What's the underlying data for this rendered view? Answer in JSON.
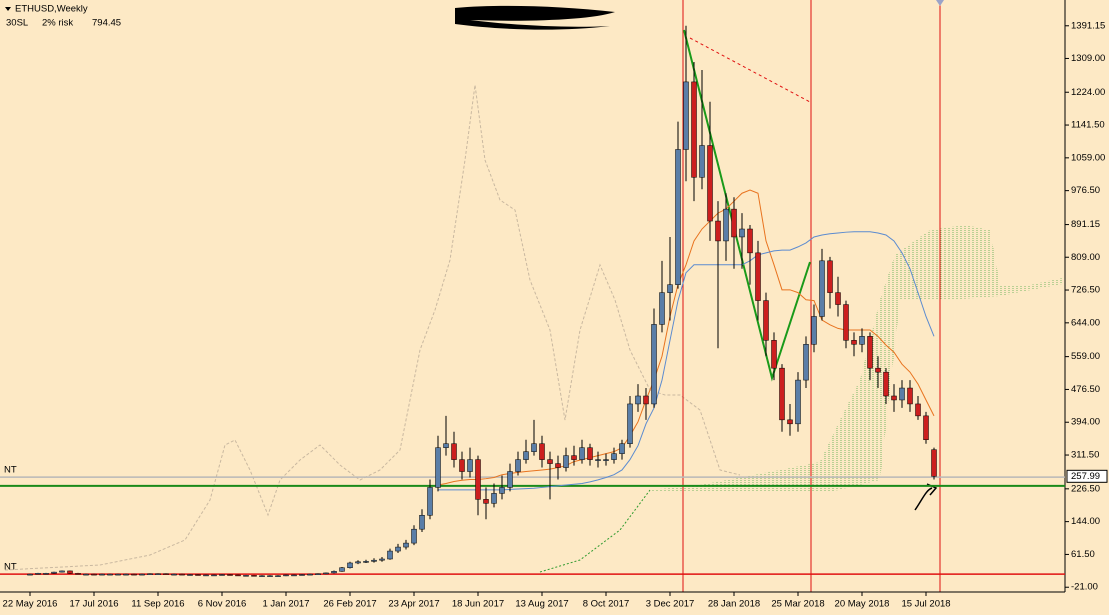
{
  "chart_data": {
    "type": "candlestick",
    "title": "ETHUSD,Weekly",
    "info": [
      "30SL",
      "2% risk",
      794.45
    ],
    "up_color": "#5a7ea8",
    "down_color": "#cc1f1f",
    "categories": [
      "22 May 2016",
      null,
      null,
      null,
      null,
      null,
      null,
      null,
      "17 Jul 2016",
      null,
      null,
      null,
      null,
      null,
      null,
      null,
      "11 Sep 2016",
      null,
      null,
      null,
      null,
      null,
      null,
      null,
      "6 Nov 2016",
      null,
      null,
      null,
      null,
      null,
      null,
      null,
      "1 Jan 2017",
      null,
      null,
      null,
      null,
      null,
      null,
      null,
      "26 Feb 2017",
      null,
      null,
      null,
      null,
      null,
      null,
      null,
      "23 Apr 2017",
      null,
      null,
      null,
      null,
      null,
      null,
      null,
      "18 Jun 2017",
      null,
      null,
      null,
      null,
      null,
      null,
      null,
      "13 Aug 2017",
      null,
      null,
      null,
      null,
      null,
      null,
      null,
      "8 Oct 2017",
      null,
      null,
      null,
      null,
      null,
      null,
      null,
      "3 Dec 2017",
      null,
      null,
      null,
      null,
      null,
      null,
      null,
      "28 Jan 2018",
      null,
      null,
      null,
      null,
      null,
      null,
      null,
      "25 Mar 2018",
      null,
      null,
      null,
      null,
      null,
      null,
      null,
      "20 May 2018",
      null,
      null,
      null,
      null,
      null,
      null,
      null,
      "15 Jul 2018",
      null
    ],
    "open": [
      11,
      12,
      14,
      14,
      17,
      20,
      14,
      12,
      12,
      11,
      12,
      12,
      12,
      12,
      11,
      12,
      13,
      13,
      12,
      12,
      11,
      11,
      10,
      10,
      10,
      11,
      10,
      9,
      9,
      8,
      8,
      8,
      8,
      10,
      10,
      11,
      12,
      13,
      15,
      19,
      28,
      40,
      43,
      44,
      47,
      50,
      70,
      80,
      90,
      125,
      160,
      230,
      330,
      340,
      300,
      270,
      300,
      200,
      190,
      215,
      230,
      270,
      300,
      320,
      340,
      300,
      290,
      280,
      310,
      300,
      330,
      300,
      300,
      300,
      315,
      340,
      440,
      460,
      440,
      640,
      720,
      740,
      1080,
      1250,
      1010,
      1090,
      900,
      850,
      930,
      860,
      880,
      820,
      700,
      600,
      530,
      400,
      390,
      500,
      590,
      660,
      800,
      720,
      690,
      600,
      590,
      610,
      530,
      520,
      460,
      450,
      480,
      440,
      410,
      325
    ],
    "high": [
      13,
      15,
      15,
      18,
      21,
      21,
      15,
      13,
      13,
      13,
      13,
      13,
      13,
      13,
      13,
      14,
      14,
      14,
      13,
      13,
      12,
      12,
      11,
      11,
      12,
      12,
      11,
      10,
      10,
      9,
      9,
      9,
      11,
      11,
      12,
      13,
      14,
      16,
      21,
      30,
      43,
      47,
      48,
      52,
      55,
      76,
      88,
      98,
      135,
      175,
      250,
      360,
      410,
      370,
      320,
      330,
      310,
      230,
      240,
      260,
      290,
      320,
      350,
      400,
      360,
      320,
      310,
      330,
      335,
      350,
      340,
      320,
      315,
      330,
      350,
      460,
      490,
      480,
      680,
      800,
      860,
      1150,
      1391.15,
      1300,
      1280,
      1200,
      950,
      970,
      960,
      920,
      890,
      850,
      720,
      620,
      540,
      440,
      520,
      610,
      690,
      830,
      810,
      760,
      700,
      620,
      630,
      620,
      560,
      530,
      490,
      500,
      500,
      460,
      420,
      330
    ],
    "low": [
      10,
      11,
      13,
      13,
      16,
      13,
      11,
      11,
      10,
      10,
      11,
      11,
      11,
      10,
      10,
      11,
      12,
      11,
      11,
      10,
      10,
      9,
      9,
      9,
      9,
      9,
      8,
      8,
      7,
      7,
      7,
      7,
      7,
      9,
      9,
      10,
      11,
      12,
      14,
      18,
      26,
      37,
      40,
      41,
      43,
      48,
      65,
      74,
      85,
      118,
      150,
      220,
      310,
      280,
      250,
      255,
      160,
      150,
      180,
      200,
      220,
      260,
      290,
      310,
      280,
      200,
      250,
      270,
      285,
      290,
      285,
      280,
      285,
      290,
      300,
      330,
      420,
      400,
      430,
      620,
      650,
      730,
      1000,
      950,
      980,
      850,
      580,
      800,
      780,
      780,
      740,
      650,
      560,
      500,
      370,
      360,
      370,
      480,
      570,
      650,
      680,
      660,
      580,
      560,
      570,
      500,
      480,
      440,
      420,
      430,
      420,
      400,
      340,
      250
    ],
    "close": [
      12,
      14,
      14,
      17,
      20,
      14,
      12,
      12,
      11,
      12,
      12,
      12,
      12,
      11,
      12,
      13,
      13,
      12,
      12,
      11,
      11,
      10,
      10,
      10,
      11,
      10,
      9,
      9,
      8,
      8,
      8,
      8,
      10,
      10,
      11,
      12,
      13,
      15,
      19,
      28,
      40,
      43,
      44,
      47,
      50,
      70,
      80,
      90,
      125,
      160,
      230,
      330,
      340,
      300,
      270,
      300,
      200,
      190,
      215,
      230,
      270,
      300,
      320,
      340,
      300,
      290,
      280,
      310,
      300,
      330,
      300,
      300,
      300,
      315,
      340,
      440,
      460,
      440,
      640,
      720,
      740,
      1080,
      1250,
      1010,
      1090,
      900,
      850,
      930,
      860,
      880,
      820,
      700,
      600,
      530,
      400,
      390,
      500,
      590,
      660,
      800,
      720,
      690,
      600,
      590,
      610,
      530,
      520,
      460,
      450,
      480,
      440,
      410,
      350,
      257.99
    ],
    "overlays": [
      {
        "color": "#e8731f",
        "values": [
          null,
          null,
          null,
          null,
          null,
          null,
          null,
          null,
          null,
          null,
          null,
          null,
          null,
          null,
          null,
          null,
          null,
          null,
          null,
          null,
          null,
          null,
          null,
          null,
          null,
          null,
          null,
          null,
          null,
          null,
          null,
          null,
          null,
          null,
          null,
          null,
          null,
          null,
          null,
          null,
          null,
          null,
          null,
          null,
          null,
          null,
          null,
          null,
          null,
          null,
          null,
          236,
          240,
          245,
          248,
          250,
          250,
          252,
          255,
          262,
          265,
          268,
          270,
          272,
          274,
          276,
          280,
          285,
          295,
          300,
          305,
          310,
          315,
          320,
          330,
          360,
          395,
          450,
          500,
          560,
          660,
          740,
          790,
          850,
          880,
          900,
          920,
          930,
          950,
          970,
          978,
          970,
          850,
          790,
          727,
          727,
          720,
          702,
          700,
          651,
          639,
          630,
          626,
          626,
          626,
          626,
          610,
          588,
          570,
          540,
          520,
          490,
          450,
          410
        ]
      },
      {
        "color": "#5b8bd0",
        "values": [
          null,
          null,
          null,
          null,
          null,
          null,
          null,
          null,
          null,
          null,
          null,
          null,
          null,
          null,
          null,
          null,
          null,
          null,
          null,
          null,
          null,
          null,
          null,
          null,
          null,
          null,
          null,
          null,
          null,
          null,
          null,
          null,
          null,
          null,
          null,
          null,
          null,
          null,
          null,
          null,
          null,
          null,
          null,
          null,
          null,
          null,
          null,
          null,
          null,
          null,
          null,
          224,
          224,
          224,
          224,
          224,
          224,
          224,
          224,
          224,
          225,
          226,
          227,
          228,
          230,
          232,
          234,
          236,
          238,
          240,
          244,
          249,
          255,
          262,
          274,
          300,
          335,
          390,
          430,
          500,
          600,
          700,
          770,
          790,
          790,
          790,
          790,
          790,
          790,
          790,
          800,
          815,
          820,
          825,
          827,
          827,
          835,
          845,
          860,
          865,
          868,
          870,
          872,
          873,
          873,
          873,
          870,
          865,
          850,
          820,
          780,
          720,
          660,
          610
        ]
      }
    ],
    "levels": [
      {
        "label": "NT",
        "value": 256,
        "color": "#b8b8b8"
      },
      {
        "value": 234,
        "color": "#1a8a1a"
      },
      {
        "label": "NT",
        "value": 12,
        "color": "#e01010"
      }
    ],
    "ylim": [
      -33,
      1456
    ],
    "yticks": [
      1391.15,
      {
        "value": 1309,
        "label": "1309.00"
      },
      {
        "value": 1224,
        "label": "1224.00"
      },
      {
        "value": 1141.5,
        "label": "1141.50"
      },
      {
        "value": 1059,
        "label": "1059.00"
      },
      {
        "value": 976.5,
        "label": "976.50"
      },
      891.15,
      {
        "value": 809,
        "label": "809.00"
      },
      {
        "value": 726.5,
        "label": "726.50"
      },
      {
        "value": 644,
        "label": "644.00"
      },
      {
        "value": 559,
        "label": "559.00"
      },
      {
        "value": 476.5,
        "label": "476.50"
      },
      {
        "value": 394,
        "label": "394.00"
      },
      {
        "value": 311.5,
        "label": "311.50"
      },
      {
        "value": 226.5,
        "label": "226.50"
      },
      {
        "value": 144,
        "label": "144.00"
      },
      {
        "value": 61.5,
        "label": "61.50"
      },
      {
        "value": -21,
        "label": "-21.00"
      }
    ]
  }
}
